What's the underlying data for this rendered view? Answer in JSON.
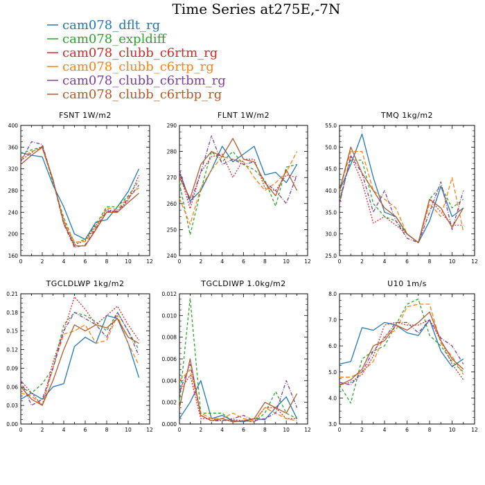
{
  "title": "Time Series at275E,-7N",
  "legend": [
    {
      "label": "cam078_dflt_rg",
      "color": "#1f77b4",
      "dash": ""
    },
    {
      "label": "cam078_expldiff",
      "color": "#2ca02c",
      "dash": "4,3"
    },
    {
      "label": "cam078_clubb_c6rtm_rg",
      "color": "#d62728",
      "dash": "2,2"
    },
    {
      "label": "cam078_clubb_c6rtp_rg",
      "color": "#ff7f0e",
      "dash": "6,3"
    },
    {
      "label": "cam078_clubb_c6rtbm_rg",
      "color": "#7b3f9e",
      "dash": "5,2,1,2"
    },
    {
      "label": "cam078_clubb_c6rtbp_rg",
      "color": "#b05a2a",
      "dash": ""
    }
  ],
  "chart_data": [
    {
      "type": "line",
      "title": "FSNT   1W/m2",
      "x": [
        0,
        1,
        2,
        3,
        4,
        5,
        6,
        7,
        8,
        9,
        10,
        11
      ],
      "xlim": [
        0,
        12
      ],
      "xticks": [
        0,
        2,
        4,
        6,
        8,
        10,
        12
      ],
      "ylim": [
        160,
        400
      ],
      "yticks": [
        "160",
        "200",
        "240",
        "280",
        "320",
        "360",
        "400"
      ],
      "series": [
        {
          "values": [
            350,
            345,
            342,
            290,
            250,
            200,
            190,
            222,
            226,
            250,
            278,
            320
          ]
        },
        {
          "values": [
            348,
            355,
            360,
            295,
            230,
            183,
            190,
            218,
            250,
            250,
            270,
            298
          ]
        },
        {
          "values": [
            335,
            350,
            362,
            300,
            222,
            180,
            188,
            215,
            245,
            240,
            262,
            308
          ]
        },
        {
          "values": [
            340,
            352,
            358,
            298,
            225,
            185,
            186,
            212,
            248,
            245,
            268,
            285
          ]
        },
        {
          "values": [
            333,
            370,
            365,
            298,
            218,
            175,
            180,
            210,
            242,
            242,
            265,
            290
          ]
        },
        {
          "values": [
            328,
            345,
            360,
            300,
            220,
            178,
            178,
            208,
            240,
            240,
            258,
            275
          ]
        }
      ]
    },
    {
      "type": "line",
      "title": "FLNT   1W/m2",
      "x": [
        0,
        1,
        2,
        3,
        4,
        5,
        6,
        7,
        8,
        9,
        10,
        11
      ],
      "xlim": [
        0,
        12
      ],
      "xticks": [
        0,
        2,
        4,
        6,
        8,
        10,
        12
      ],
      "ylim": [
        240,
        290
      ],
      "yticks": [
        "240",
        "250",
        "260",
        "270",
        "280",
        "290"
      ],
      "series": [
        {
          "values": [
            272,
            261,
            265,
            273,
            282,
            276,
            279,
            282,
            271,
            272,
            268,
            275
          ]
        },
        {
          "values": [
            268,
            248,
            265,
            280,
            276,
            280,
            275,
            273,
            269,
            259,
            274,
            275
          ]
        },
        {
          "values": [
            272,
            258,
            272,
            278,
            279,
            270,
            277,
            277,
            266,
            265,
            271,
            270
          ]
        },
        {
          "values": [
            262,
            252,
            266,
            273,
            278,
            277,
            276,
            270,
            265,
            268,
            272,
            280
          ]
        },
        {
          "values": [
            273,
            260,
            272,
            286,
            275,
            277,
            275,
            276,
            268,
            265,
            260,
            271
          ]
        },
        {
          "values": [
            270,
            262,
            275,
            280,
            278,
            285,
            277,
            276,
            268,
            263,
            273,
            265
          ]
        }
      ]
    },
    {
      "type": "line",
      "title": "TMQ   1kg/m2",
      "x": [
        0,
        1,
        2,
        3,
        4,
        5,
        6,
        7,
        8,
        9,
        10,
        11
      ],
      "xlim": [
        0,
        12
      ],
      "xticks": [
        0,
        2,
        4,
        6,
        8,
        10,
        12
      ],
      "ylim": [
        25,
        55
      ],
      "yticks": [
        "25.0",
        "30.0",
        "35.0",
        "40.0",
        "45.0",
        "50.0",
        "55.0"
      ],
      "series": [
        {
          "values": [
            40,
            46,
            53,
            43,
            35,
            34,
            30,
            28,
            33,
            41,
            34,
            36
          ]
        },
        {
          "values": [
            38,
            47,
            47,
            37,
            34,
            33,
            30,
            28,
            38,
            41,
            36,
            38
          ]
        },
        {
          "values": [
            37,
            48,
            42,
            32.5,
            34,
            32,
            30,
            28,
            38,
            35,
            32,
            32
          ]
        },
        {
          "values": [
            40,
            49,
            49,
            40,
            38,
            36,
            30,
            28,
            37,
            34,
            43,
            30.5
          ]
        },
        {
          "values": [
            37,
            48,
            44,
            35,
            40,
            33,
            29,
            28,
            35,
            42,
            31,
            40
          ]
        },
        {
          "values": [
            40,
            50,
            44,
            40,
            36,
            34,
            30,
            28,
            38,
            36,
            31.5,
            36
          ]
        }
      ]
    },
    {
      "type": "line",
      "title": "TGCLDLWP   1kg/m2",
      "x": [
        0,
        1,
        2,
        3,
        4,
        5,
        6,
        7,
        8,
        9,
        10,
        11
      ],
      "xlim": [
        0,
        12
      ],
      "xticks": [
        0,
        2,
        4,
        6,
        8,
        10,
        12
      ],
      "ylim": [
        0,
        0.21
      ],
      "yticks": [
        "0.00",
        "0.03",
        "0.06",
        "0.09",
        "0.12",
        "0.15",
        "0.18",
        "0.21"
      ],
      "series": [
        {
          "values": [
            0.04,
            0.05,
            0.04,
            0.06,
            0.065,
            0.125,
            0.14,
            0.13,
            0.175,
            0.17,
            0.13,
            0.075
          ]
        },
        {
          "values": [
            0.06,
            0.05,
            0.065,
            0.09,
            0.16,
            0.18,
            0.175,
            0.165,
            0.15,
            0.18,
            0.15,
            0.12
          ]
        },
        {
          "values": [
            0.07,
            0.05,
            0.03,
            0.1,
            0.15,
            0.205,
            0.185,
            0.16,
            0.175,
            0.19,
            0.16,
            0.135
          ]
        },
        {
          "values": [
            0.05,
            0.045,
            0.03,
            0.09,
            0.145,
            0.15,
            0.16,
            0.13,
            0.135,
            0.175,
            0.13,
            0.095
          ]
        },
        {
          "values": [
            0.07,
            0.03,
            0.04,
            0.09,
            0.15,
            0.18,
            0.17,
            0.16,
            0.14,
            0.18,
            0.15,
            0.11
          ]
        },
        {
          "values": [
            0.06,
            0.04,
            0.03,
            0.07,
            0.12,
            0.16,
            0.15,
            0.16,
            0.155,
            0.17,
            0.14,
            0.13
          ]
        }
      ]
    },
    {
      "type": "line",
      "title": "TGCLDIWP   1.0kg/m2",
      "x": [
        0,
        1,
        2,
        3,
        4,
        5,
        6,
        7,
        8,
        9,
        10,
        11
      ],
      "xlim": [
        0,
        12
      ],
      "xticks": [
        0,
        2,
        4,
        6,
        8,
        10,
        12
      ],
      "ylim": [
        0,
        0.012
      ],
      "yticks": [
        "0.000",
        "0.002",
        "0.004",
        "0.006",
        "0.008",
        "0.010",
        "0.012"
      ],
      "series": [
        {
          "values": [
            0.0005,
            0.002,
            0.004,
            0.0005,
            0.0008,
            0.0003,
            0.0002,
            0.0005,
            0.0004,
            0.0015,
            0.0025,
            0.0005
          ]
        },
        {
          "values": [
            0.002,
            0.0116,
            0.001,
            0.001,
            0.001,
            0.0002,
            0.0003,
            0.0002,
            0.001,
            0.003,
            0.001,
            0.0005
          ]
        },
        {
          "values": [
            0.003,
            0.0045,
            0.0005,
            0.0005,
            0.0003,
            0.0004,
            0.0003,
            0.0002,
            0.0015,
            0.0015,
            0.0005,
            0.0005
          ]
        },
        {
          "values": [
            0.004,
            0.005,
            0.001,
            0.0005,
            0.0005,
            0.001,
            0.0005,
            0.0003,
            0.0015,
            0.001,
            0.0005,
            0.0003
          ]
        },
        {
          "values": [
            0.003,
            0.0055,
            0.0008,
            0.0003,
            0.0003,
            0.0005,
            0.0008,
            0.0003,
            0.0005,
            0.001,
            0.004,
            0.0015
          ]
        },
        {
          "values": [
            0.0015,
            0.006,
            0.0008,
            0.0003,
            0.0005,
            0.0002,
            0.0003,
            0.0005,
            0.002,
            0.0015,
            0.001,
            0.0028
          ]
        }
      ]
    },
    {
      "type": "line",
      "title": "U10   1m/s",
      "x": [
        0,
        1,
        2,
        3,
        4,
        5,
        6,
        7,
        8,
        9,
        10,
        11
      ],
      "xlim": [
        0,
        12
      ],
      "xticks": [
        0,
        2,
        4,
        6,
        8,
        10,
        12
      ],
      "ylim": [
        3,
        8
      ],
      "yticks": [
        "3.0",
        "4.0",
        "5.0",
        "6.0",
        "7.0",
        "8.0"
      ],
      "series": [
        {
          "values": [
            5.3,
            5.4,
            6.7,
            6.6,
            6.9,
            6.8,
            6.5,
            6.4,
            7.0,
            5.8,
            5.2,
            5.5
          ]
        },
        {
          "values": [
            4.5,
            3.8,
            5.5,
            5.8,
            6.0,
            6.8,
            7.6,
            7.8,
            6.4,
            6.0,
            5.4,
            5.0
          ]
        },
        {
          "values": [
            4.5,
            4.6,
            4.9,
            5.6,
            6.8,
            6.9,
            6.8,
            6.8,
            7.0,
            6.2,
            5.3,
            4.7
          ]
        },
        {
          "values": [
            4.8,
            4.8,
            5.0,
            5.4,
            6.4,
            6.6,
            7.5,
            7.6,
            7.6,
            6.1,
            5.6,
            4.9
          ]
        },
        {
          "values": [
            4.6,
            4.5,
            5.0,
            5.8,
            6.3,
            6.9,
            6.9,
            6.5,
            7.0,
            6.3,
            6.0,
            5.3
          ]
        },
        {
          "values": [
            4.5,
            4.7,
            5.1,
            6.0,
            6.2,
            6.8,
            6.6,
            6.9,
            7.3,
            6.2,
            5.5,
            5.1
          ]
        }
      ]
    }
  ]
}
